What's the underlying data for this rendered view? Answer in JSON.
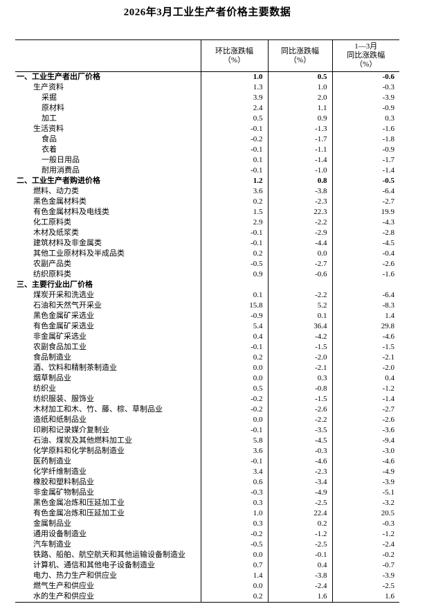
{
  "page": {
    "title": "2026年3月工业生产者价格主要数据"
  },
  "table": {
    "columns": [
      "环比涨跌幅\n（%）",
      "同比涨跌幅\n（%）",
      "1—3月\n同比涨跌幅\n（%）"
    ],
    "rows": [
      {
        "label": "一、工业生产者出厂价格",
        "indent": 0,
        "bold": true,
        "values": [
          "1.0",
          "0.5",
          "-0.6"
        ]
      },
      {
        "label": "生产资料",
        "indent": 1,
        "bold": false,
        "values": [
          "1.3",
          "1.0",
          "-0.3"
        ]
      },
      {
        "label": "采掘",
        "indent": 2,
        "bold": false,
        "values": [
          "3.9",
          "2.0",
          "-3.9"
        ]
      },
      {
        "label": "原材料",
        "indent": 2,
        "bold": false,
        "values": [
          "2.4",
          "1.1",
          "-0.9"
        ]
      },
      {
        "label": "加工",
        "indent": 2,
        "bold": false,
        "values": [
          "0.5",
          "0.9",
          "0.3"
        ]
      },
      {
        "label": "生活资料",
        "indent": 1,
        "bold": false,
        "values": [
          "-0.1",
          "-1.3",
          "-1.6"
        ]
      },
      {
        "label": "食品",
        "indent": 2,
        "bold": false,
        "values": [
          "-0.2",
          "-1.7",
          "-1.8"
        ]
      },
      {
        "label": "衣着",
        "indent": 2,
        "bold": false,
        "values": [
          "-0.1",
          "-1.1",
          "-0.9"
        ]
      },
      {
        "label": "一般日用品",
        "indent": 2,
        "bold": false,
        "values": [
          "0.1",
          "-1.4",
          "-1.7"
        ]
      },
      {
        "label": "耐用消费品",
        "indent": 2,
        "bold": false,
        "values": [
          "-0.1",
          "-1.0",
          "-1.4"
        ]
      },
      {
        "label": "二、工业生产者购进价格",
        "indent": 0,
        "bold": true,
        "values": [
          "1.2",
          "0.8",
          "-0.5"
        ]
      },
      {
        "label": "燃料、动力类",
        "indent": 1,
        "bold": false,
        "values": [
          "3.6",
          "-3.8",
          "-6.4"
        ]
      },
      {
        "label": "黑色金属材料类",
        "indent": 1,
        "bold": false,
        "values": [
          "0.2",
          "-2.3",
          "-2.7"
        ]
      },
      {
        "label": "有色金属材料及电线类",
        "indent": 1,
        "bold": false,
        "values": [
          "1.5",
          "22.3",
          "19.9"
        ]
      },
      {
        "label": "化工原料类",
        "indent": 1,
        "bold": false,
        "values": [
          "2.9",
          "-2.2",
          "-4.3"
        ]
      },
      {
        "label": "木材及纸浆类",
        "indent": 1,
        "bold": false,
        "values": [
          "-0.1",
          "-2.9",
          "-2.8"
        ]
      },
      {
        "label": "建筑材料及非金属类",
        "indent": 1,
        "bold": false,
        "values": [
          "-0.1",
          "-4.4",
          "-4.5"
        ]
      },
      {
        "label": "其他工业原材料及半成品类",
        "indent": 1,
        "bold": false,
        "values": [
          "0.2",
          "0.0",
          "-0.4"
        ]
      },
      {
        "label": "农副产品类",
        "indent": 1,
        "bold": false,
        "values": [
          "-0.5",
          "-2.7",
          "-2.6"
        ]
      },
      {
        "label": "纺织原料类",
        "indent": 1,
        "bold": false,
        "values": [
          "0.9",
          "-0.6",
          "-1.6"
        ]
      },
      {
        "label": "三、主要行业出厂价格",
        "indent": 0,
        "bold": true,
        "values": [
          "",
          "",
          ""
        ]
      },
      {
        "label": "煤炭开采和洗选业",
        "indent": 1,
        "bold": false,
        "values": [
          "0.1",
          "-2.2",
          "-6.4"
        ]
      },
      {
        "label": "石油和天然气开采业",
        "indent": 1,
        "bold": false,
        "values": [
          "15.8",
          "5.2",
          "-8.3"
        ]
      },
      {
        "label": "黑色金属矿采选业",
        "indent": 1,
        "bold": false,
        "values": [
          "-0.9",
          "0.1",
          "1.4"
        ]
      },
      {
        "label": "有色金属矿采选业",
        "indent": 1,
        "bold": false,
        "values": [
          "5.4",
          "36.4",
          "29.8"
        ]
      },
      {
        "label": "非金属矿采选业",
        "indent": 1,
        "bold": false,
        "values": [
          "0.4",
          "-4.2",
          "-4.6"
        ]
      },
      {
        "label": "农副食品加工业",
        "indent": 1,
        "bold": false,
        "values": [
          "-0.1",
          "-1.5",
          "-1.5"
        ]
      },
      {
        "label": "食品制造业",
        "indent": 1,
        "bold": false,
        "values": [
          "0.2",
          "-2.0",
          "-2.1"
        ]
      },
      {
        "label": "酒、饮料和精制茶制造业",
        "indent": 1,
        "bold": false,
        "values": [
          "0.0",
          "-2.1",
          "-2.0"
        ]
      },
      {
        "label": "烟草制品业",
        "indent": 1,
        "bold": false,
        "values": [
          "0.0",
          "0.3",
          "0.4"
        ]
      },
      {
        "label": "纺织业",
        "indent": 1,
        "bold": false,
        "values": [
          "0.5",
          "-0.8",
          "-1.2"
        ]
      },
      {
        "label": "纺织服装、服饰业",
        "indent": 1,
        "bold": false,
        "values": [
          "-0.2",
          "-1.5",
          "-1.4"
        ]
      },
      {
        "label": "木材加工和木、竹、藤、棕、草制品业",
        "indent": 1,
        "bold": false,
        "values": [
          "-0.2",
          "-2.6",
          "-2.7"
        ]
      },
      {
        "label": "造纸和纸制品业",
        "indent": 1,
        "bold": false,
        "values": [
          "0.0",
          "-2.2",
          "-2.6"
        ]
      },
      {
        "label": "印刷和记录媒介复制业",
        "indent": 1,
        "bold": false,
        "values": [
          "-0.1",
          "-3.5",
          "-3.6"
        ]
      },
      {
        "label": "石油、煤炭及其他燃料加工业",
        "indent": 1,
        "bold": false,
        "values": [
          "5.8",
          "-4.5",
          "-9.4"
        ]
      },
      {
        "label": "化学原料和化学制品制造业",
        "indent": 1,
        "bold": false,
        "values": [
          "3.6",
          "-0.3",
          "-3.0"
        ]
      },
      {
        "label": "医药制造业",
        "indent": 1,
        "bold": false,
        "values": [
          "-0.1",
          "-4.6",
          "-4.6"
        ]
      },
      {
        "label": "化学纤维制造业",
        "indent": 1,
        "bold": false,
        "values": [
          "3.4",
          "-2.3",
          "-4.9"
        ]
      },
      {
        "label": "橡胶和塑料制品业",
        "indent": 1,
        "bold": false,
        "values": [
          "0.6",
          "-3.4",
          "-3.9"
        ]
      },
      {
        "label": "非金属矿物制品业",
        "indent": 1,
        "bold": false,
        "values": [
          "-0.3",
          "-4.9",
          "-5.1"
        ]
      },
      {
        "label": "黑色金属冶炼和压延加工业",
        "indent": 1,
        "bold": false,
        "values": [
          "0.3",
          "-2.5",
          "-3.2"
        ]
      },
      {
        "label": "有色金属冶炼和压延加工业",
        "indent": 1,
        "bold": false,
        "values": [
          "1.0",
          "22.4",
          "20.5"
        ]
      },
      {
        "label": "金属制品业",
        "indent": 1,
        "bold": false,
        "values": [
          "0.3",
          "0.2",
          "-0.3"
        ]
      },
      {
        "label": "通用设备制造业",
        "indent": 1,
        "bold": false,
        "values": [
          "-0.2",
          "-1.2",
          "-1.2"
        ]
      },
      {
        "label": "汽车制造业",
        "indent": 1,
        "bold": false,
        "values": [
          "-0.5",
          "-2.5",
          "-2.4"
        ]
      },
      {
        "label": "铁路、船舶、航空航天和其他运输设备制造业",
        "indent": 1,
        "bold": false,
        "values": [
          "0.0",
          "-0.1",
          "-0.2"
        ]
      },
      {
        "label": "计算机、通信和其他电子设备制造业",
        "indent": 1,
        "bold": false,
        "values": [
          "0.7",
          "0.4",
          "-0.7"
        ]
      },
      {
        "label": "电力、热力生产和供应业",
        "indent": 1,
        "bold": false,
        "values": [
          "1.4",
          "-3.8",
          "-3.9"
        ]
      },
      {
        "label": "燃气生产和供应业",
        "indent": 1,
        "bold": false,
        "values": [
          "0.0",
          "-2.4",
          "-2.5"
        ]
      },
      {
        "label": "水的生产和供应业",
        "indent": 1,
        "bold": false,
        "values": [
          "0.2",
          "1.6",
          "1.6"
        ]
      }
    ]
  }
}
